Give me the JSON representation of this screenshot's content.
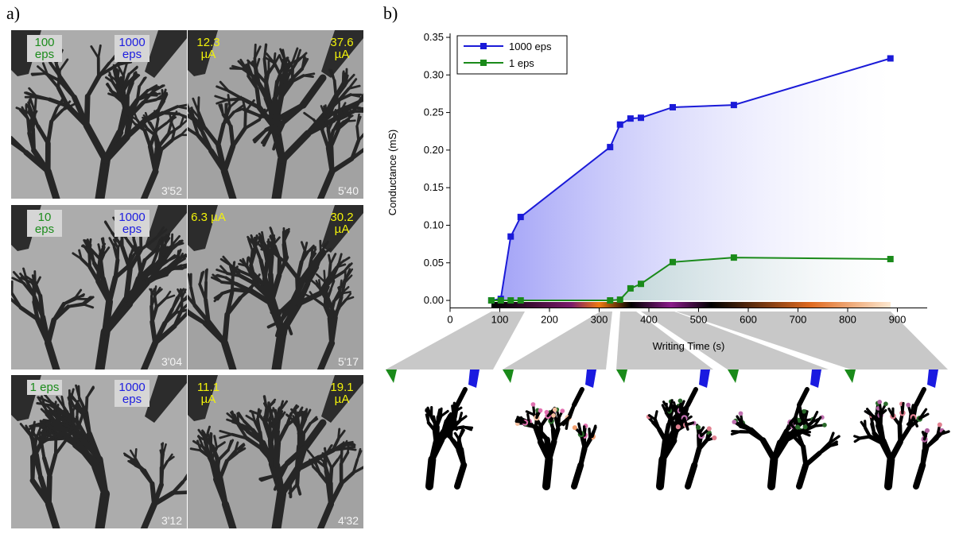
{
  "panel_a": {
    "label": "a)",
    "rows": [
      {
        "labels": [
          "100 eps",
          "1000 eps",
          "12.3 µA",
          "37.6 µA"
        ],
        "times": [
          "3'52",
          "5'40"
        ]
      },
      {
        "labels": [
          "10 eps",
          "1000 eps",
          "6.3 µA",
          "30.2 µA"
        ],
        "times": [
          "3'04",
          "5'17"
        ]
      },
      {
        "labels": [
          "1 eps",
          "1000 eps",
          "11.1 µA",
          "19.1 µA"
        ],
        "times": [
          "3'12",
          "4'32"
        ]
      }
    ]
  },
  "panel_b": {
    "label": "b)"
  },
  "chart_data": {
    "type": "line",
    "x_label": "Writing Time (s)",
    "y_label": "Conductance (mS)",
    "x": [
      83,
      102,
      122,
      142,
      322,
      342,
      363,
      384,
      448,
      571,
      886
    ],
    "series": [
      {
        "name": "1000 eps",
        "color": "#1a1ad8",
        "values": [
          0,
          0.002,
          0.085,
          0.111,
          0.204,
          0.234,
          0.242,
          0.243,
          0.257,
          0.26,
          0.322
        ]
      },
      {
        "name": "1 eps",
        "color": "#1a8a1a",
        "values": [
          0,
          0,
          0,
          0,
          0,
          0.001,
          0.016,
          0.022,
          0.051,
          0.057,
          0.055
        ]
      }
    ],
    "xlim": [
      0,
      960
    ],
    "ylim": [
      -0.01,
      0.35
    ],
    "xticks": [
      0,
      100,
      200,
      300,
      400,
      500,
      600,
      700,
      800,
      900
    ],
    "yticks": [
      {
        "value": 0,
        "label": "0.00"
      },
      {
        "value": 0.05,
        "label": "0.05"
      },
      {
        "value": 0.1,
        "label": "0.10"
      },
      {
        "value": 0.15,
        "label": "0.15"
      },
      {
        "value": 0.2,
        "label": "0.20"
      },
      {
        "value": 0.25,
        "label": "0.25"
      },
      {
        "value": 0.3,
        "label": "0.30"
      },
      {
        "value": 0.35,
        "label": "0.35"
      }
    ],
    "legend": "upper left",
    "marker": "square"
  }
}
